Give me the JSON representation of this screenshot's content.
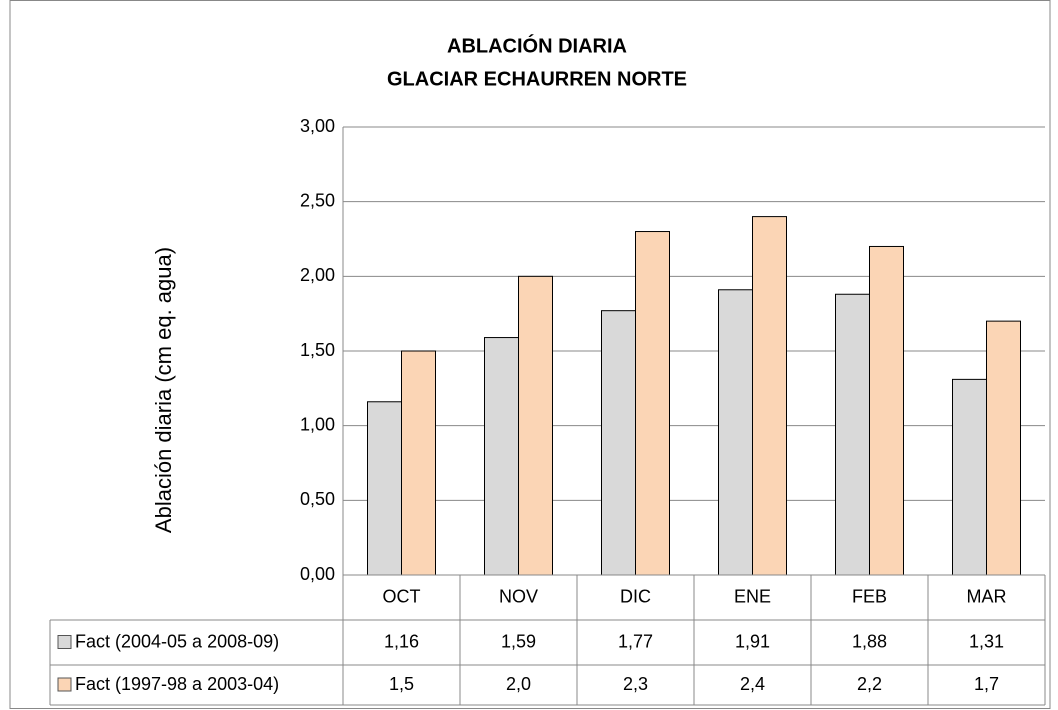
{
  "chart_data": {
    "type": "bar",
    "title": "ABLACIÓN DIARIA",
    "subtitle": "GLACIAR ECHAURREN NORTE",
    "y_label": "Ablación diaria (cm eq. agua)",
    "categories": [
      "OCT",
      "NOV",
      "DIC",
      "ENE",
      "FEB",
      "MAR"
    ],
    "series": [
      {
        "name": "Fact (2004-05 a 2008-09)",
        "color": "#d9d9d9",
        "values": [
          1.16,
          1.59,
          1.77,
          1.91,
          1.88,
          1.31
        ],
        "value_labels": [
          "1,16",
          "1,59",
          "1,77",
          "1,91",
          "1,88",
          "1,31"
        ]
      },
      {
        "name": "Fact (1997-98 a 2003-04)",
        "color": "#fbd5b5",
        "values": [
          1.5,
          2.0,
          2.3,
          2.4,
          2.2,
          1.7
        ],
        "value_labels": [
          "1,5",
          "2,0",
          "2,3",
          "2,4",
          "2,2",
          "1,7"
        ]
      }
    ],
    "ylim": [
      0,
      3
    ],
    "yticks": [
      {
        "value": 0,
        "label": "0,00"
      },
      {
        "value": 0.5,
        "label": "0,50"
      },
      {
        "value": 1,
        "label": "1,00"
      },
      {
        "value": 1.5,
        "label": "1,50"
      },
      {
        "value": 2,
        "label": "2,00"
      },
      {
        "value": 2.5,
        "label": "2,50"
      },
      {
        "value": 3,
        "label": "3,00"
      }
    ],
    "grid": true
  }
}
